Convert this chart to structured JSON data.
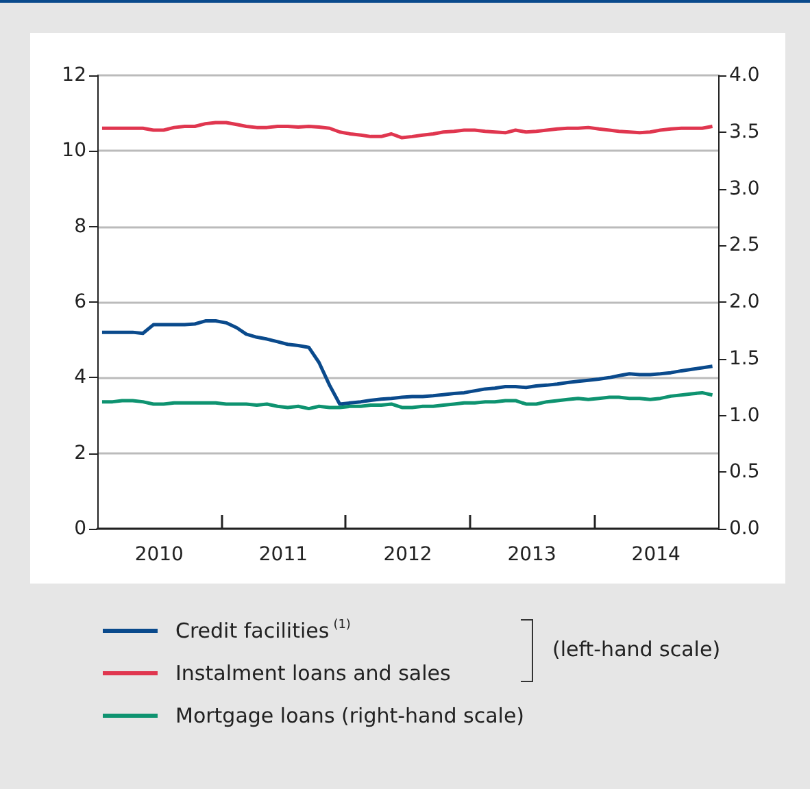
{
  "chart_data": {
    "type": "line",
    "x": [
      "2010-01-15",
      "2010-02-15",
      "2010-03-15",
      "2010-04-15",
      "2010-05-15",
      "2010-06-15",
      "2010-07-15",
      "2010-08-15",
      "2010-09-15",
      "2010-10-15",
      "2010-11-15",
      "2010-12-15",
      "2011-01-15",
      "2011-02-15",
      "2011-03-15",
      "2011-04-15",
      "2011-05-15",
      "2011-06-15",
      "2011-07-15",
      "2011-08-15",
      "2011-09-15",
      "2011-10-15",
      "2011-11-15",
      "2011-12-15",
      "2012-01-15",
      "2012-02-15",
      "2012-03-15",
      "2012-04-15",
      "2012-05-15",
      "2012-06-15",
      "2012-07-15",
      "2012-08-15",
      "2012-09-15",
      "2012-10-15",
      "2012-11-15",
      "2012-12-15",
      "2013-01-15",
      "2013-02-15",
      "2013-03-15",
      "2013-04-15",
      "2013-05-15",
      "2013-06-15",
      "2013-07-15",
      "2013-08-15",
      "2013-09-15",
      "2013-10-15",
      "2013-11-15",
      "2013-12-15",
      "2014-01-15",
      "2014-02-15",
      "2014-03-15",
      "2014-04-15",
      "2014-05-15",
      "2014-06-15",
      "2014-07-15",
      "2014-08-15",
      "2014-09-15",
      "2014-10-15",
      "2014-11-15",
      "2014-12-15"
    ],
    "series": [
      {
        "name": "Credit facilities$^{(1)}$",
        "color": "#0a4a8c",
        "values": [
          5.2,
          5.2,
          5.2,
          5.2,
          5.17,
          5.4,
          5.4,
          5.4,
          5.4,
          5.42,
          5.5,
          5.5,
          5.45,
          5.32,
          5.15,
          5.07,
          5.02,
          4.95,
          4.88,
          4.85,
          4.8,
          4.4,
          3.8,
          3.3,
          3.33,
          3.36,
          3.4,
          3.43,
          3.45,
          3.48,
          3.5,
          3.5,
          3.52,
          3.55,
          3.58,
          3.6,
          3.65,
          3.7,
          3.72,
          3.76,
          3.76,
          3.74,
          3.78,
          3.8,
          3.83,
          3.87,
          3.9,
          3.93,
          3.96,
          4.0,
          4.05,
          4.1,
          4.08,
          4.08,
          4.1,
          4.13,
          4.18,
          4.22,
          4.26,
          4.3
        ]
      },
      {
        "name": "Instalment loans and sales",
        "color": "#e0364f",
        "values": [
          10.6,
          10.6,
          10.6,
          10.6,
          10.6,
          10.55,
          10.55,
          10.62,
          10.65,
          10.65,
          10.72,
          10.75,
          10.75,
          10.7,
          10.65,
          10.62,
          10.62,
          10.65,
          10.65,
          10.63,
          10.65,
          10.63,
          10.6,
          10.5,
          10.45,
          10.42,
          10.38,
          10.38,
          10.45,
          10.35,
          10.38,
          10.42,
          10.45,
          10.5,
          10.52,
          10.55,
          10.55,
          10.52,
          10.5,
          10.48,
          10.55,
          10.5,
          10.52,
          10.55,
          10.58,
          10.6,
          10.6,
          10.62,
          10.58,
          10.55,
          10.52,
          10.5,
          10.48,
          10.5,
          10.55,
          10.58,
          10.6,
          10.6,
          10.6,
          10.65
        ]
      },
      {
        "name": "Mortgage loans (right-hand scale)",
        "color": "#0e9370",
        "axis": "y2",
        "values": [
          1.12,
          1.12,
          1.13,
          1.13,
          1.12,
          1.1,
          1.1,
          1.11,
          1.11,
          1.11,
          1.11,
          1.11,
          1.1,
          1.1,
          1.1,
          1.09,
          1.1,
          1.08,
          1.07,
          1.08,
          1.06,
          1.08,
          1.07,
          1.07,
          1.08,
          1.08,
          1.09,
          1.09,
          1.1,
          1.07,
          1.07,
          1.08,
          1.08,
          1.09,
          1.1,
          1.11,
          1.11,
          1.12,
          1.12,
          1.13,
          1.13,
          1.1,
          1.1,
          1.12,
          1.13,
          1.14,
          1.15,
          1.14,
          1.15,
          1.16,
          1.16,
          1.15,
          1.15,
          1.14,
          1.15,
          1.17,
          1.18,
          1.19,
          1.2,
          1.18
        ]
      }
    ],
    "xlim": [
      "2010-01-01",
      "2015-01-01"
    ],
    "xticks": [
      {
        "value": "2010-07-02",
        "label": "2010"
      },
      {
        "value": "2011-01-01",
        "label": null
      },
      {
        "value": "2011-07-02",
        "label": "2011"
      },
      {
        "value": "2012-01-01",
        "label": null
      },
      {
        "value": "2012-07-02",
        "label": "2012"
      },
      {
        "value": "2013-01-01",
        "label": null
      },
      {
        "value": "2013-07-02",
        "label": "2013"
      },
      {
        "value": "2014-01-01",
        "label": null
      },
      {
        "value": "2014-07-02",
        "label": "2014"
      }
    ],
    "ylim": [
      0,
      12
    ],
    "yticks": [
      0,
      2,
      4,
      6,
      8,
      10,
      12
    ],
    "y2lim": [
      0,
      4
    ],
    "y2ticks": [
      {
        "value": 0,
        "label": "0.0"
      },
      0.5,
      {
        "value": 1,
        "label": "1.0"
      },
      1.5,
      {
        "value": 2,
        "label": "2.0"
      },
      2.5,
      {
        "value": 3,
        "label": "3.0"
      },
      3.5,
      {
        "value": 4,
        "label": "4.0"
      }
    ],
    "grid": "y",
    "legend": "bottom",
    "marker": "none",
    "line_style": "solid",
    "annotations": [
      "(left-hand scale)"
    ]
  }
}
